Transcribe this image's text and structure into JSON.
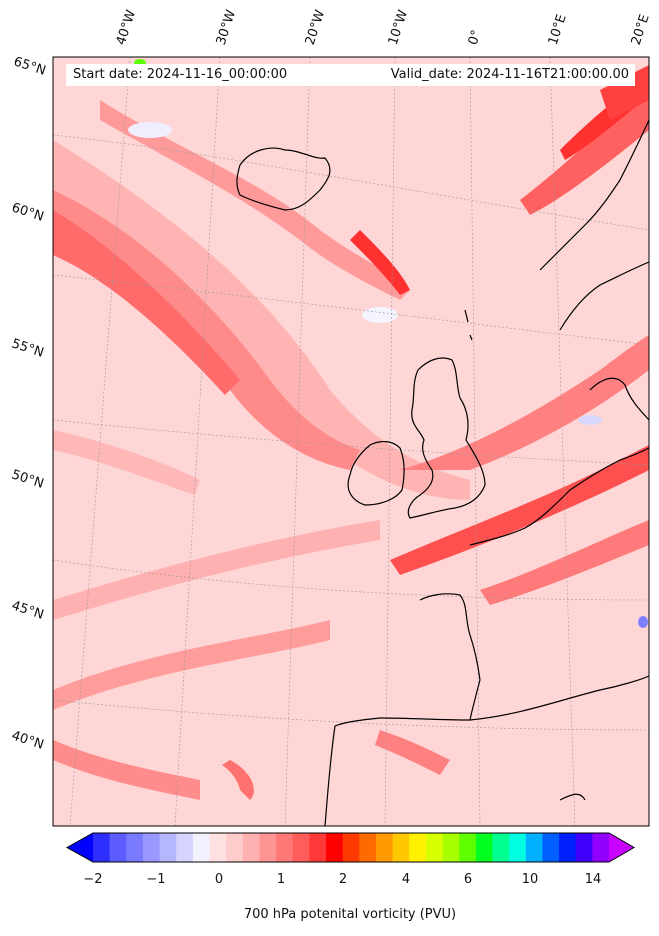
{
  "title": {
    "start_date": "Start date: 2024-11-16_00:00:00",
    "valid_date": "Valid_date: 2024-11-16T21:00:00.00"
  },
  "longitude_labels": [
    "40°W",
    "30°W",
    "20°W",
    "10°W",
    "0°",
    "10°E",
    "20°E"
  ],
  "latitude_labels": [
    "65°N",
    "60°N",
    "55°N",
    "50°N",
    "45°N",
    "40°N"
  ],
  "colorbar": {
    "label": "700 hPa potenital vorticity (PVU)",
    "ticks": [
      "−2",
      "−1",
      "0",
      "1",
      "2",
      "4",
      "6",
      "10",
      "14"
    ],
    "colors": [
      "#0000ff",
      "#2e2eff",
      "#5c5cff",
      "#7a7aff",
      "#9898ff",
      "#b6b6ff",
      "#d4d4ff",
      "#f2f2ff",
      "#ffe0e0",
      "#ffcccc",
      "#ffb0b0",
      "#ff9494",
      "#ff7878",
      "#ff5c5c",
      "#ff3838",
      "#ff0000",
      "#ff3a00",
      "#ff6a00",
      "#ff9a00",
      "#ffc800",
      "#fff000",
      "#d8ff00",
      "#a8ff00",
      "#60ff00",
      "#00ff20",
      "#00ff90",
      "#00ffe0",
      "#00b0ff",
      "#0060ff",
      "#0020ff",
      "#4000ff",
      "#9000ff",
      "#c800ff"
    ]
  },
  "colors": {
    "background_field": "#ffd6d6",
    "band_medium": "#ff9a9a",
    "band_strong": "#ff5a5a",
    "band_light": "#ffc0c0",
    "coastline": "#000000"
  }
}
